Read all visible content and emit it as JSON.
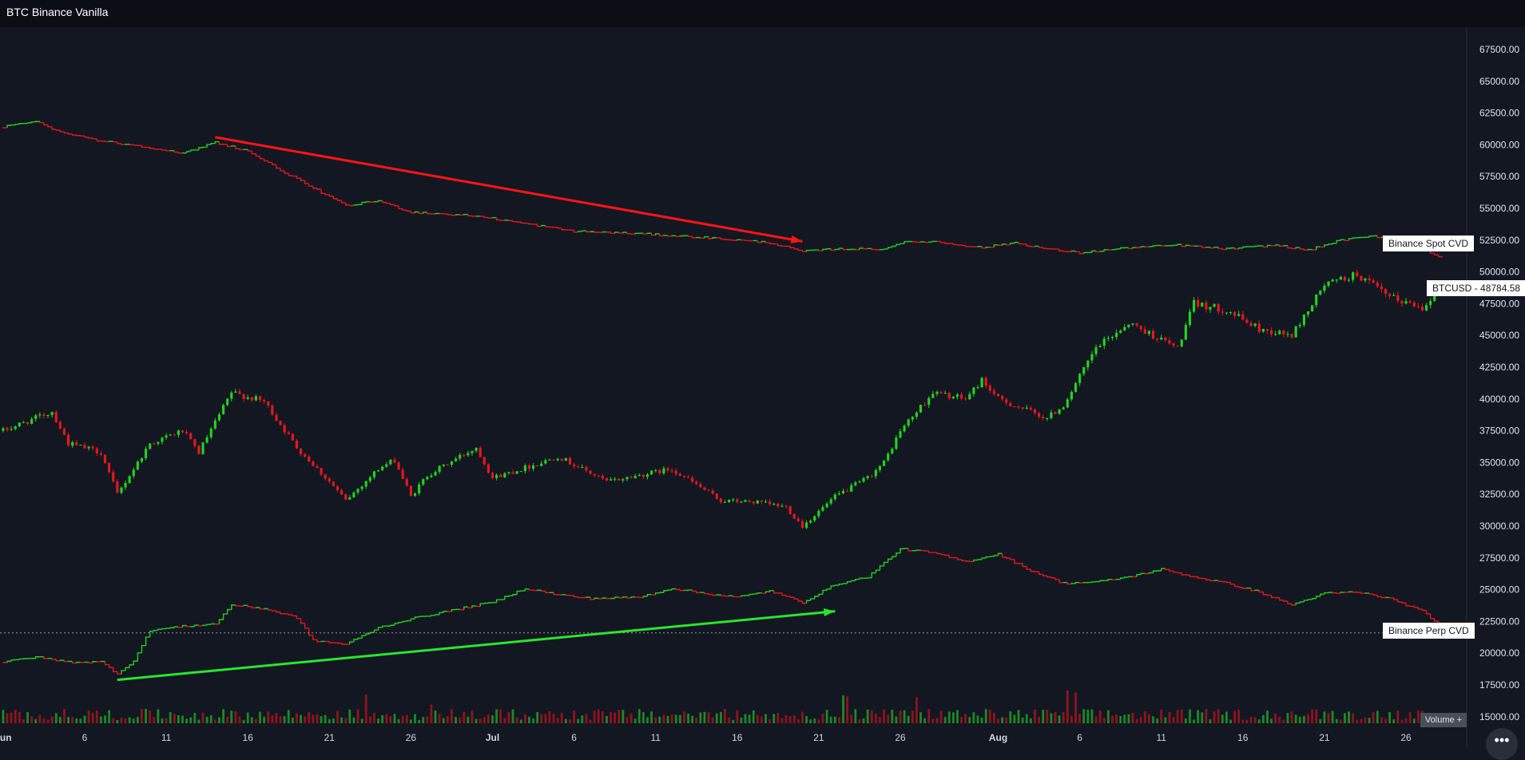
{
  "header": {
    "title": "BTC Binance Vanilla"
  },
  "labels": {
    "spot_cvd": "Binance Spot CVD",
    "perp_cvd": "Binance Perp CVD",
    "btcusd": "BTCUSD",
    "btcusd_sep": "-",
    "btcusd_price": "48784.58",
    "volume": "Volume +",
    "more": "•••"
  },
  "colors": {
    "up": "#22d11e",
    "down": "#e3171d",
    "background": "#131722",
    "spot_arrow": "#ff1414",
    "perp_arrow": "#29e62b"
  },
  "chart_data": {
    "type": "candlestick",
    "title": "BTC Binance Vanilla",
    "y_ticks": [
      "67500.00",
      "65000.00",
      "62500.00",
      "60000.00",
      "57500.00",
      "55000.00",
      "52500.00",
      "50000.00",
      "47500.00",
      "45000.00",
      "42500.00",
      "40000.00",
      "37500.00",
      "35000.00",
      "32500.00",
      "30000.00",
      "27500.00",
      "25000.00",
      "22500.00",
      "20000.00",
      "17500.00",
      "15000.00"
    ],
    "ylim": [
      14700,
      69300
    ],
    "x_ticks": [
      "Jun",
      "6",
      "11",
      "16",
      "21",
      "26",
      "Jul",
      "6",
      "11",
      "16",
      "21",
      "26",
      "Aug",
      "6",
      "11",
      "16",
      "21",
      "26"
    ],
    "x_range": [
      "2021-06-01",
      "2021-08-30"
    ],
    "last_price": 48784.58,
    "price_anchors": [
      {
        "date": "06-01",
        "value": 37500
      },
      {
        "date": "06-04",
        "value": 39000
      },
      {
        "date": "06-05",
        "value": 36500
      },
      {
        "date": "06-07",
        "value": 35800
      },
      {
        "date": "06-08",
        "value": 32500
      },
      {
        "date": "06-10",
        "value": 36500
      },
      {
        "date": "06-12",
        "value": 37500
      },
      {
        "date": "06-13",
        "value": 35800
      },
      {
        "date": "06-15",
        "value": 40500
      },
      {
        "date": "06-17",
        "value": 39800
      },
      {
        "date": "06-19",
        "value": 36200
      },
      {
        "date": "06-21",
        "value": 33500
      },
      {
        "date": "06-22",
        "value": 32000
      },
      {
        "date": "06-24",
        "value": 34500
      },
      {
        "date": "06-25",
        "value": 35200
      },
      {
        "date": "06-26",
        "value": 32300
      },
      {
        "date": "06-27",
        "value": 34000
      },
      {
        "date": "06-30",
        "value": 36200
      },
      {
        "date": "07-01",
        "value": 33800
      },
      {
        "date": "07-04",
        "value": 35000
      },
      {
        "date": "07-05",
        "value": 35500
      },
      {
        "date": "07-08",
        "value": 33500
      },
      {
        "date": "07-10",
        "value": 34000
      },
      {
        "date": "07-12",
        "value": 34500
      },
      {
        "date": "07-15",
        "value": 32000
      },
      {
        "date": "07-17",
        "value": 31900
      },
      {
        "date": "07-19",
        "value": 31500
      },
      {
        "date": "07-20",
        "value": 30000
      },
      {
        "date": "07-22",
        "value": 32300
      },
      {
        "date": "07-24",
        "value": 33800
      },
      {
        "date": "07-25",
        "value": 35000
      },
      {
        "date": "07-26",
        "value": 37500
      },
      {
        "date": "07-28",
        "value": 40500
      },
      {
        "date": "07-30",
        "value": 40000
      },
      {
        "date": "07-31",
        "value": 41500
      },
      {
        "date": "08-01",
        "value": 40000
      },
      {
        "date": "08-04",
        "value": 38500
      },
      {
        "date": "08-05",
        "value": 39500
      },
      {
        "date": "08-07",
        "value": 44000
      },
      {
        "date": "08-09",
        "value": 46000
      },
      {
        "date": "08-12",
        "value": 44000
      },
      {
        "date": "08-13",
        "value": 47500
      },
      {
        "date": "08-15",
        "value": 47000
      },
      {
        "date": "08-17",
        "value": 45500
      },
      {
        "date": "08-19",
        "value": 45000
      },
      {
        "date": "08-21",
        "value": 49000
      },
      {
        "date": "08-23",
        "value": 49800
      },
      {
        "date": "08-25",
        "value": 48000
      },
      {
        "date": "08-27",
        "value": 47200
      },
      {
        "date": "08-28",
        "value": 48785
      }
    ],
    "series": [
      {
        "name": "Binance Spot CVD",
        "type": "step-line",
        "last_value": 51200,
        "points": [
          {
            "date": "06-01",
            "value": 61400
          },
          {
            "date": "06-03",
            "value": 61900
          },
          {
            "date": "06-04",
            "value": 61200
          },
          {
            "date": "06-07",
            "value": 60300
          },
          {
            "date": "06-10",
            "value": 59800
          },
          {
            "date": "06-12",
            "value": 59300
          },
          {
            "date": "06-14",
            "value": 60200
          },
          {
            "date": "06-16",
            "value": 59500
          },
          {
            "date": "06-18",
            "value": 58000
          },
          {
            "date": "06-22",
            "value": 55200
          },
          {
            "date": "06-24",
            "value": 55600
          },
          {
            "date": "06-26",
            "value": 54700
          },
          {
            "date": "06-30",
            "value": 54400
          },
          {
            "date": "07-03",
            "value": 53800
          },
          {
            "date": "07-06",
            "value": 53200
          },
          {
            "date": "07-10",
            "value": 53000
          },
          {
            "date": "07-14",
            "value": 52700
          },
          {
            "date": "07-18",
            "value": 52300
          },
          {
            "date": "07-20",
            "value": 51600
          },
          {
            "date": "07-22",
            "value": 51800
          },
          {
            "date": "07-25",
            "value": 51800
          },
          {
            "date": "07-26",
            "value": 52300
          },
          {
            "date": "07-28",
            "value": 52400
          },
          {
            "date": "07-31",
            "value": 51900
          },
          {
            "date": "08-02",
            "value": 52300
          },
          {
            "date": "08-04",
            "value": 51800
          },
          {
            "date": "08-06",
            "value": 51500
          },
          {
            "date": "08-09",
            "value": 51900
          },
          {
            "date": "08-12",
            "value": 52100
          },
          {
            "date": "08-15",
            "value": 51800
          },
          {
            "date": "08-18",
            "value": 52100
          },
          {
            "date": "08-20",
            "value": 51700
          },
          {
            "date": "08-22",
            "value": 52500
          },
          {
            "date": "08-24",
            "value": 52800
          },
          {
            "date": "08-26",
            "value": 52500
          },
          {
            "date": "08-28",
            "value": 51200
          }
        ]
      },
      {
        "name": "Binance Perp CVD",
        "type": "step-line",
        "last_value": 22300,
        "points": [
          {
            "date": "06-01",
            "value": 19300
          },
          {
            "date": "06-03",
            "value": 19700
          },
          {
            "date": "06-05",
            "value": 19300
          },
          {
            "date": "06-07",
            "value": 19300
          },
          {
            "date": "06-08",
            "value": 18400
          },
          {
            "date": "06-09",
            "value": 19400
          },
          {
            "date": "06-10",
            "value": 21800
          },
          {
            "date": "06-12",
            "value": 22100
          },
          {
            "date": "06-14",
            "value": 22300
          },
          {
            "date": "06-15",
            "value": 23800
          },
          {
            "date": "06-17",
            "value": 23500
          },
          {
            "date": "06-19",
            "value": 22800
          },
          {
            "date": "06-20",
            "value": 21000
          },
          {
            "date": "06-22",
            "value": 20700
          },
          {
            "date": "06-24",
            "value": 22000
          },
          {
            "date": "06-26",
            "value": 22700
          },
          {
            "date": "06-29",
            "value": 23500
          },
          {
            "date": "07-01",
            "value": 24000
          },
          {
            "date": "07-03",
            "value": 25100
          },
          {
            "date": "07-05",
            "value": 24600
          },
          {
            "date": "07-07",
            "value": 24300
          },
          {
            "date": "07-10",
            "value": 24400
          },
          {
            "date": "07-12",
            "value": 25100
          },
          {
            "date": "07-14",
            "value": 24700
          },
          {
            "date": "07-16",
            "value": 24400
          },
          {
            "date": "07-18",
            "value": 24900
          },
          {
            "date": "07-20",
            "value": 24000
          },
          {
            "date": "07-22",
            "value": 25400
          },
          {
            "date": "07-24",
            "value": 26000
          },
          {
            "date": "07-26",
            "value": 28200
          },
          {
            "date": "07-28",
            "value": 27900
          },
          {
            "date": "07-30",
            "value": 27200
          },
          {
            "date": "08-01",
            "value": 27800
          },
          {
            "date": "08-03",
            "value": 26500
          },
          {
            "date": "08-05",
            "value": 25500
          },
          {
            "date": "08-07",
            "value": 25600
          },
          {
            "date": "08-09",
            "value": 26000
          },
          {
            "date": "08-11",
            "value": 26600
          },
          {
            "date": "08-13",
            "value": 26000
          },
          {
            "date": "08-15",
            "value": 25500
          },
          {
            "date": "08-17",
            "value": 24800
          },
          {
            "date": "08-19",
            "value": 23800
          },
          {
            "date": "08-21",
            "value": 24700
          },
          {
            "date": "08-23",
            "value": 24800
          },
          {
            "date": "08-25",
            "value": 24300
          },
          {
            "date": "08-27",
            "value": 23300
          },
          {
            "date": "08-28",
            "value": 22300
          }
        ]
      },
      {
        "name": "Volume",
        "type": "bar",
        "note": "small colored volume histogram"
      }
    ],
    "annotations": [
      {
        "type": "arrow",
        "color": "red",
        "from": {
          "date": "06-14",
          "value": 60600
        },
        "to": {
          "date": "07-20",
          "value": 52400
        }
      },
      {
        "type": "arrow",
        "color": "green",
        "from": {
          "date": "06-08",
          "value": 17900
        },
        "to": {
          "date": "07-22",
          "value": 23300
        }
      }
    ],
    "horizontal_line": {
      "value": 21600,
      "style": "dotted"
    },
    "grid": false
  }
}
